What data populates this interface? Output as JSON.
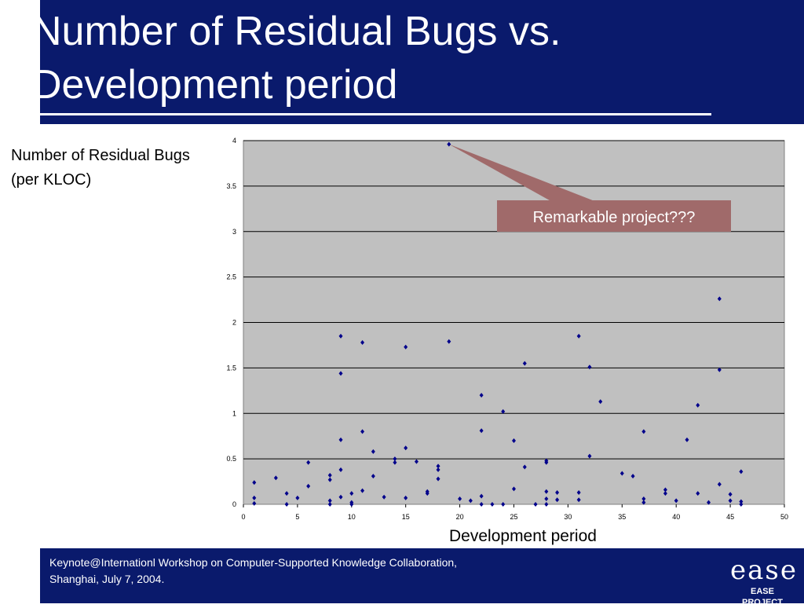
{
  "slide": {
    "title_line1": "Number of Residual Bugs vs.",
    "title_line2": "Development period",
    "ylabel_line1": "Number of Residual Bugs",
    "ylabel_line2": "(per KLOC)",
    "xlabel": "Development period",
    "callout": "Remarkable project???",
    "footer_line1": "Keynote@Internationl Workshop on Computer-Supported Knowledge Collaboration,",
    "footer_line2": "Shanghai, July 7, 2004.",
    "logo_mark": "ease",
    "logo_sub": "EASE PROJECT"
  },
  "colors": {
    "header_bg": "#0a1a6c",
    "plot_bg": "#c0c0c0",
    "marker": "#00008b",
    "callout_bg": "#a06a6a"
  },
  "chart_data": {
    "type": "scatter",
    "xlim": [
      0,
      50
    ],
    "ylim": [
      0,
      4
    ],
    "xticks": [
      "0",
      "5",
      "10",
      "15",
      "20",
      "25",
      "30",
      "35",
      "40",
      "45",
      "50"
    ],
    "yticks": [
      "0",
      "0.5",
      "1",
      "1.5",
      "2",
      "2.5",
      "3",
      "3.5",
      "4"
    ],
    "grid": "horizontal",
    "points": [
      [
        1,
        0.24
      ],
      [
        1,
        0.07
      ],
      [
        1,
        0.01
      ],
      [
        3,
        0.29
      ],
      [
        4,
        0.12
      ],
      [
        4,
        0.0
      ],
      [
        5,
        0.07
      ],
      [
        6,
        0.46
      ],
      [
        6,
        0.2
      ],
      [
        8,
        0.32
      ],
      [
        8,
        0.27
      ],
      [
        8,
        0.04
      ],
      [
        8,
        0.0
      ],
      [
        9,
        1.85
      ],
      [
        9,
        1.44
      ],
      [
        9,
        0.71
      ],
      [
        9,
        0.38
      ],
      [
        9,
        0.08
      ],
      [
        10,
        0.12
      ],
      [
        10,
        0.02
      ],
      [
        10,
        0.0
      ],
      [
        11,
        1.78
      ],
      [
        11,
        0.8
      ],
      [
        11,
        0.15
      ],
      [
        12,
        0.58
      ],
      [
        12,
        0.31
      ],
      [
        13,
        0.08
      ],
      [
        14,
        0.5
      ],
      [
        14,
        0.46
      ],
      [
        15,
        1.73
      ],
      [
        15,
        0.62
      ],
      [
        15,
        0.07
      ],
      [
        16,
        0.47
      ],
      [
        17,
        0.14
      ],
      [
        17,
        0.12
      ],
      [
        18,
        0.42
      ],
      [
        18,
        0.38
      ],
      [
        18,
        0.28
      ],
      [
        19,
        3.96
      ],
      [
        19,
        1.79
      ],
      [
        20,
        0.06
      ],
      [
        21,
        0.04
      ],
      [
        22,
        1.2
      ],
      [
        22,
        0.81
      ],
      [
        22,
        0.09
      ],
      [
        22,
        0.0
      ],
      [
        23,
        0.0
      ],
      [
        24,
        1.02
      ],
      [
        24,
        0.0
      ],
      [
        25,
        0.7
      ],
      [
        25,
        0.17
      ],
      [
        26,
        1.55
      ],
      [
        26,
        0.41
      ],
      [
        27,
        0.0
      ],
      [
        28,
        0.48
      ],
      [
        28,
        0.46
      ],
      [
        28,
        0.14
      ],
      [
        28,
        0.06
      ],
      [
        28,
        0.0
      ],
      [
        29,
        0.13
      ],
      [
        29,
        0.05
      ],
      [
        31,
        1.85
      ],
      [
        31,
        0.13
      ],
      [
        31,
        0.05
      ],
      [
        32,
        1.51
      ],
      [
        32,
        0.53
      ],
      [
        33,
        1.13
      ],
      [
        35,
        0.34
      ],
      [
        36,
        0.31
      ],
      [
        37,
        0.8
      ],
      [
        37,
        0.06
      ],
      [
        37,
        0.02
      ],
      [
        39,
        0.16
      ],
      [
        39,
        0.12
      ],
      [
        40,
        0.04
      ],
      [
        41,
        0.71
      ],
      [
        42,
        1.09
      ],
      [
        42,
        0.12
      ],
      [
        43,
        0.02
      ],
      [
        44,
        2.26
      ],
      [
        44,
        1.48
      ],
      [
        44,
        0.22
      ],
      [
        45,
        0.11
      ],
      [
        45,
        0.04
      ],
      [
        46,
        0.36
      ],
      [
        46,
        0.03
      ],
      [
        46,
        0.0
      ]
    ],
    "callout_point": [
      19,
      3.96
    ]
  }
}
